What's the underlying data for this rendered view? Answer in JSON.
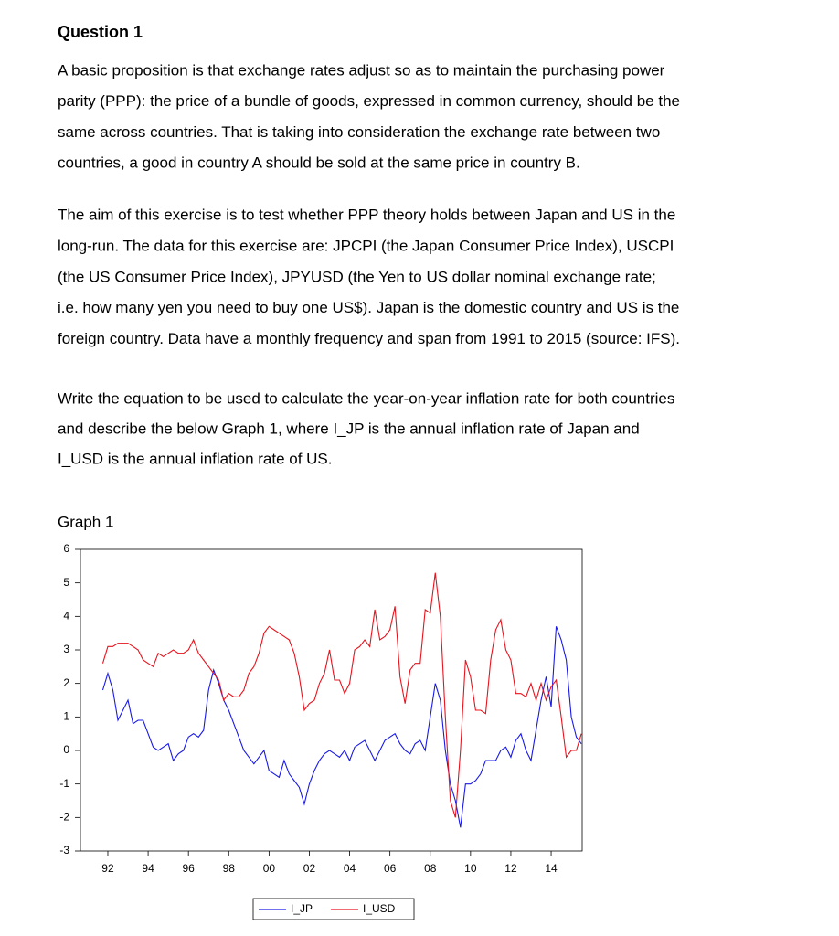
{
  "title": "Question 1",
  "paragraphs": [
    {
      "lines": [
        "A basic proposition is that exchange rates adjust so as to maintain the purchasing power",
        "parity (PPP): the price of a bundle of goods, expressed in common currency, should be the",
        "same across countries. That is taking into consideration the exchange rate between two",
        "countries, a good in country A should be sold at the same price in country B."
      ]
    },
    {
      "lines": [
        "The aim of this exercise is to test whether PPP theory holds between Japan and US in the",
        "long-run. The data for this exercise are: JPCPI (the Japan Consumer Price Index), USCPI",
        "(the US Consumer Price Index), JPYUSD (the Yen to US dollar nominal exchange rate;",
        "i.e. how many yen you need to buy one US$). Japan is the domestic country and US is the",
        "foreign country. Data have a monthly frequency and span from 1991 to 2015 (source: IFS)."
      ]
    },
    {
      "lines": [
        "Write the equation to be used to calculate the year-on-year inflation rate for both countries",
        "and describe the below Graph 1, where I_JP is the annual inflation rate of Japan and",
        "I_USD is the annual inflation rate of US."
      ]
    }
  ],
  "chart_data": {
    "type": "line",
    "title": "Graph 1",
    "x": [
      1991.75,
      1992,
      1992.25,
      1992.5,
      1992.75,
      1993,
      1993.25,
      1993.5,
      1993.75,
      1994,
      1994.25,
      1994.5,
      1994.75,
      1995,
      1995.25,
      1995.5,
      1995.75,
      1996,
      1996.25,
      1996.5,
      1996.75,
      1997,
      1997.25,
      1997.5,
      1997.75,
      1998,
      1998.25,
      1998.5,
      1998.75,
      1999,
      1999.25,
      1999.5,
      1999.75,
      2000,
      2000.25,
      2000.5,
      2000.75,
      2001,
      2001.25,
      2001.5,
      2001.75,
      2002,
      2002.25,
      2002.5,
      2002.75,
      2003,
      2003.25,
      2003.5,
      2003.75,
      2004,
      2004.25,
      2004.5,
      2004.75,
      2005,
      2005.25,
      2005.5,
      2005.75,
      2006,
      2006.25,
      2006.5,
      2006.75,
      2007,
      2007.25,
      2007.5,
      2007.75,
      2008,
      2008.25,
      2008.5,
      2008.75,
      2009,
      2009.25,
      2009.5,
      2009.75,
      2010,
      2010.25,
      2010.5,
      2010.75,
      2011,
      2011.25,
      2011.5,
      2011.75,
      2012,
      2012.25,
      2012.5,
      2012.75,
      2013,
      2013.25,
      2013.5,
      2013.75,
      2014,
      2014.25,
      2014.5,
      2014.75,
      2015,
      2015.25,
      2015.5
    ],
    "series": [
      {
        "name": "I_JP",
        "color": "#1a1ae6",
        "values": [
          1.8,
          2.3,
          1.8,
          0.9,
          1.2,
          1.5,
          0.8,
          0.9,
          0.9,
          0.5,
          0.1,
          0,
          0.1,
          0.2,
          -0.3,
          -0.1,
          0,
          0.4,
          0.5,
          0.4,
          0.6,
          1.8,
          2.4,
          2.0,
          1.5,
          1.2,
          0.8,
          0.4,
          0,
          -0.2,
          -0.4,
          -0.2,
          0,
          -0.6,
          -0.7,
          -0.8,
          -0.3,
          -0.7,
          -0.9,
          -1.1,
          -1.6,
          -1.0,
          -0.6,
          -0.3,
          -0.1,
          0,
          -0.1,
          -0.2,
          0,
          -0.3,
          0.1,
          0.2,
          0.3,
          0,
          -0.3,
          0,
          0.3,
          0.4,
          0.5,
          0.2,
          0,
          -0.1,
          0.2,
          0.3,
          0,
          1.0,
          2.0,
          1.5,
          0,
          -1.0,
          -1.5,
          -2.3,
          -1.0,
          -1.0,
          -0.9,
          -0.7,
          -0.3,
          -0.3,
          -0.3,
          0,
          0.1,
          -0.2,
          0.3,
          0.5,
          0,
          -0.3,
          0.6,
          1.5,
          2.2,
          1.3,
          3.7,
          3.3,
          2.7,
          1.0,
          0.4,
          0.2
        ]
      },
      {
        "name": "I_USD",
        "color": "#e6141e",
        "values": [
          2.6,
          3.1,
          3.1,
          3.2,
          3.2,
          3.2,
          3.1,
          3.0,
          2.7,
          2.6,
          2.5,
          2.9,
          2.8,
          2.9,
          3.0,
          2.9,
          2.9,
          3.0,
          3.3,
          2.9,
          2.7,
          2.5,
          2.3,
          2.1,
          1.5,
          1.7,
          1.6,
          1.6,
          1.8,
          2.3,
          2.5,
          2.9,
          3.5,
          3.7,
          3.6,
          3.5,
          3.4,
          3.3,
          2.9,
          2.2,
          1.2,
          1.4,
          1.5,
          2.0,
          2.3,
          3.0,
          2.1,
          2.1,
          1.7,
          2.0,
          3.0,
          3.1,
          3.3,
          3.1,
          4.2,
          3.3,
          3.4,
          3.6,
          4.3,
          2.2,
          1.4,
          2.4,
          2.6,
          2.6,
          4.2,
          4.1,
          5.3,
          4.0,
          1.0,
          -1.5,
          -2.0,
          0,
          2.7,
          2.2,
          1.2,
          1.2,
          1.1,
          2.7,
          3.6,
          3.9,
          3.0,
          2.7,
          1.7,
          1.7,
          1.6,
          2.0,
          1.5,
          2.0,
          1.5,
          1.9,
          2.1,
          1.0,
          -0.2,
          0,
          0,
          0.5
        ]
      }
    ],
    "xlim": [
      1990.64,
      2015.54
    ],
    "xticks": [
      {
        "value": 1992,
        "label": "92"
      },
      {
        "value": 1994,
        "label": "94"
      },
      {
        "value": 1996,
        "label": "96"
      },
      {
        "value": 1998,
        "label": "98"
      },
      {
        "value": 2000,
        "label": "00"
      },
      {
        "value": 2002,
        "label": "02"
      },
      {
        "value": 2004,
        "label": "04"
      },
      {
        "value": 2006,
        "label": "06"
      },
      {
        "value": 2008,
        "label": "08"
      },
      {
        "value": 2010,
        "label": "10"
      },
      {
        "value": 2012,
        "label": "12"
      },
      {
        "value": 2014,
        "label": "14"
      }
    ],
    "ylim": [
      -3,
      6
    ],
    "yticks": [
      -3,
      -2,
      -1,
      0,
      1,
      2,
      3,
      4,
      5,
      6
    ],
    "legend": "bottom"
  }
}
